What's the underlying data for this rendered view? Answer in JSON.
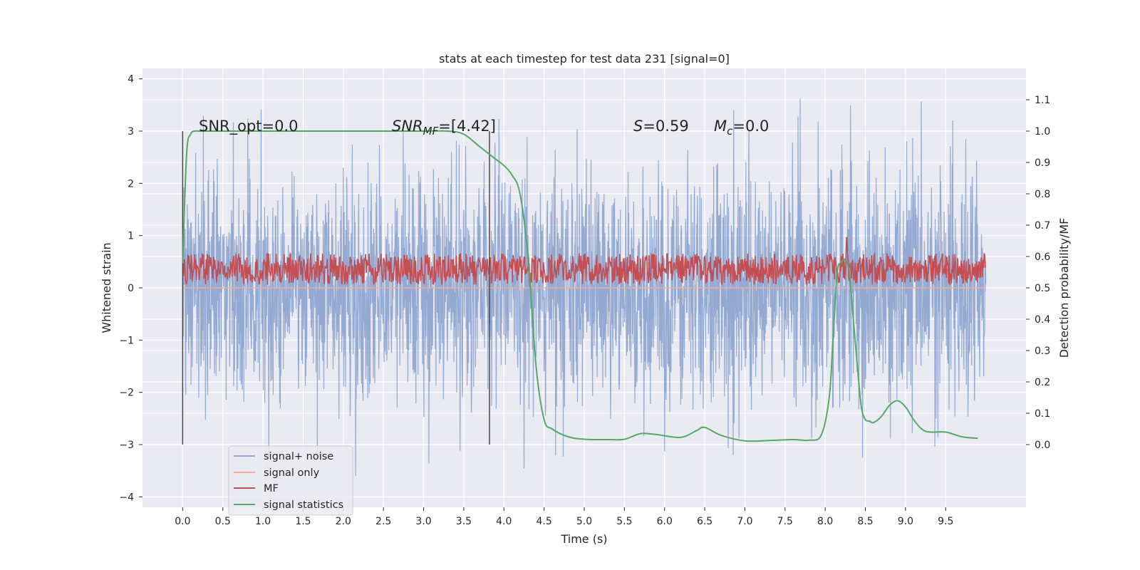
{
  "chart_data": {
    "type": "line",
    "title": "stats at each timestep for test data 231 [signal=0]",
    "xlabel": "Time (s)",
    "ylabel_left": "Whitened strain",
    "ylabel_right": "Detection probability/MF",
    "xlim": [
      -0.5,
      10.5
    ],
    "ylim_left": [
      -4.2,
      4.2
    ],
    "ylim_right": [
      -0.2,
      1.2
    ],
    "x_ticks": [
      0.0,
      0.5,
      1.0,
      1.5,
      2.0,
      2.5,
      3.0,
      3.5,
      4.0,
      4.5,
      5.0,
      5.5,
      6.0,
      6.5,
      7.0,
      7.5,
      8.0,
      8.5,
      9.0,
      9.5
    ],
    "x_tick_labels": [
      "0.0",
      "0.5",
      "1.0",
      "1.5",
      "2.0",
      "2.5",
      "3.0",
      "3.5",
      "4.0",
      "4.5",
      "5.0",
      "5.5",
      "6.0",
      "6.5",
      "7.0",
      "7.5",
      "8.0",
      "8.5",
      "9.0",
      "9.5"
    ],
    "y_left_ticks": [
      -4,
      -3,
      -2,
      -1,
      0,
      1,
      2,
      3,
      4
    ],
    "y_left_tick_labels": [
      "−4",
      "−3",
      "−2",
      "−1",
      "0",
      "1",
      "2",
      "3",
      "4"
    ],
    "y_right_ticks": [
      0.0,
      0.1,
      0.2,
      0.3,
      0.4,
      0.5,
      0.6,
      0.7,
      0.8,
      0.9,
      1.0,
      1.1
    ],
    "y_right_tick_labels": [
      "0.0",
      "0.1",
      "0.2",
      "0.3",
      "0.4",
      "0.5",
      "0.6",
      "0.7",
      "0.8",
      "0.9",
      "1.0",
      "1.1"
    ],
    "grid": true,
    "legend_position": "lower-left",
    "annotations": {
      "snr_opt": "SNR_opt=0.0",
      "snr_mf_base": "SNR",
      "snr_mf_sub": "MF",
      "snr_mf_value": "=[4.42]",
      "s_label": "S",
      "s_value": "=0.59",
      "mc_label": "M",
      "mc_sub": "c",
      "mc_value": "=0.0"
    },
    "vertical_markers": [
      0.0,
      3.82
    ],
    "series": [
      {
        "name": "signal+ noise",
        "axis": "left",
        "color": "#8fa6d1",
        "style": "noise",
        "x_range": [
          0.0,
          10.0
        ],
        "envelope": [
          -3.2,
          4.0
        ]
      },
      {
        "name": "signal only",
        "axis": "left",
        "color": "#f0b09a",
        "style": "flat",
        "x": [
          0.0,
          10.0
        ],
        "y": [
          0.0,
          0.0
        ]
      },
      {
        "name": "MF",
        "axis": "right",
        "color": "#c44e52",
        "style": "noise",
        "x_range": [
          0.0,
          10.0
        ],
        "band": [
          0.51,
          0.61
        ],
        "max": 0.66
      },
      {
        "name": "signal statistics",
        "axis": "right",
        "color": "#55a868",
        "style": "line",
        "x": [
          0.0,
          0.05,
          0.1,
          0.15,
          0.2,
          0.3,
          0.5,
          1.0,
          2.0,
          3.0,
          3.3,
          3.5,
          3.7,
          3.9,
          4.0,
          4.1,
          4.2,
          4.3,
          4.4,
          4.5,
          4.6,
          4.8,
          5.0,
          5.3,
          5.5,
          5.7,
          5.9,
          6.2,
          6.4,
          6.5,
          6.7,
          7.0,
          7.3,
          7.6,
          7.8,
          7.95,
          8.05,
          8.1,
          8.15,
          8.2,
          8.25,
          8.3,
          8.35,
          8.4,
          8.45,
          8.5,
          8.55,
          8.6,
          8.7,
          8.8,
          8.9,
          9.0,
          9.1,
          9.2,
          9.3,
          9.5,
          9.7,
          9.9
        ],
        "y": [
          0.58,
          0.93,
          0.99,
          1.0,
          1.0,
          1.0,
          1.0,
          1.0,
          1.0,
          1.0,
          1.0,
          0.99,
          0.95,
          0.91,
          0.89,
          0.86,
          0.8,
          0.6,
          0.25,
          0.08,
          0.05,
          0.025,
          0.017,
          0.016,
          0.017,
          0.035,
          0.032,
          0.023,
          0.045,
          0.055,
          0.03,
          0.012,
          0.013,
          0.016,
          0.014,
          0.03,
          0.15,
          0.35,
          0.55,
          0.58,
          0.59,
          0.55,
          0.4,
          0.25,
          0.12,
          0.08,
          0.075,
          0.07,
          0.09,
          0.125,
          0.14,
          0.12,
          0.08,
          0.05,
          0.04,
          0.04,
          0.025,
          0.02
        ]
      }
    ]
  }
}
